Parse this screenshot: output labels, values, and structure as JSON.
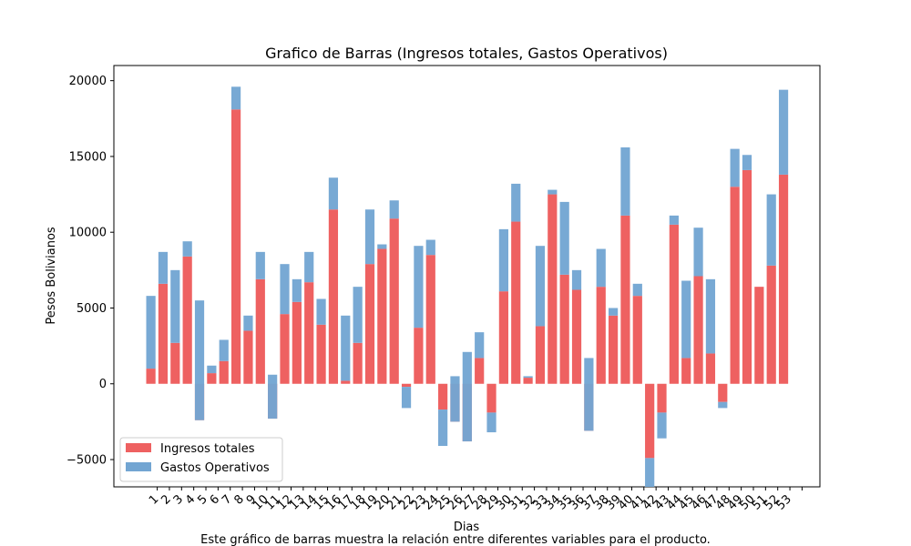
{
  "chart_data": {
    "type": "bar",
    "stacked": true,
    "title": "Grafico de Barras (Ingresos totales, Gastos Operativos)",
    "xlabel": "Dias",
    "ylabel": "Pesos Bolivianos",
    "caption": "Este gráfico de barras muestra la relación entre diferentes variables para el producto.",
    "ylim": [
      -6800,
      21000
    ],
    "yticks": [
      -5000,
      0,
      5000,
      10000,
      15000,
      20000
    ],
    "legend": {
      "placement": "lower-left"
    },
    "categories": [
      "1",
      "2",
      "3",
      "4",
      "5",
      "6",
      "7",
      "8",
      "9",
      "10",
      "11",
      "12",
      "13",
      "14",
      "15",
      "16",
      "17",
      "18",
      "19",
      "20",
      "21",
      "22",
      "23",
      "24",
      "25",
      "26",
      "27",
      "28",
      "29",
      "30",
      "31",
      "32",
      "33",
      "34",
      "35",
      "36",
      "37",
      "38",
      "39",
      "40",
      "41",
      "42",
      "43",
      "44",
      "45",
      "46",
      "47",
      "48",
      "49",
      "50",
      "51",
      "52",
      "53"
    ],
    "series": [
      {
        "name": "Ingresos totales",
        "color": "#ee6161",
        "values": [
          1000,
          6600,
          2700,
          8400,
          -2400,
          700,
          1500,
          18100,
          3500,
          6900,
          -2300,
          4600,
          5400,
          6700,
          3900,
          11500,
          200,
          2700,
          7900,
          8900,
          10900,
          -200,
          3700,
          8500,
          -1700,
          -2500,
          -3800,
          1700,
          -1900,
          6100,
          10700,
          400,
          3800,
          12500,
          7200,
          6200,
          -3100,
          6400,
          4500,
          11100,
          5800,
          -4900,
          -1900,
          10500,
          1700,
          7100,
          2000,
          -1200,
          13000,
          14100,
          6400,
          7800,
          13800
        ]
      },
      {
        "name": "Gastos Operativos",
        "color": "#72a5d2",
        "values": [
          4800,
          2100,
          4800,
          1000,
          7900,
          500,
          1400,
          1500,
          1000,
          1800,
          2900,
          3300,
          1500,
          2000,
          1700,
          2100,
          4300,
          3700,
          3600,
          300,
          1200,
          -1400,
          5400,
          1000,
          -2400,
          3000,
          5900,
          1700,
          -1300,
          4100,
          2500,
          100,
          5300,
          300,
          4800,
          1300,
          4800,
          2500,
          500,
          4500,
          800,
          -1900,
          -1700,
          600,
          5100,
          3200,
          4900,
          -400,
          2500,
          1000,
          0,
          4700,
          5600
        ]
      }
    ]
  }
}
